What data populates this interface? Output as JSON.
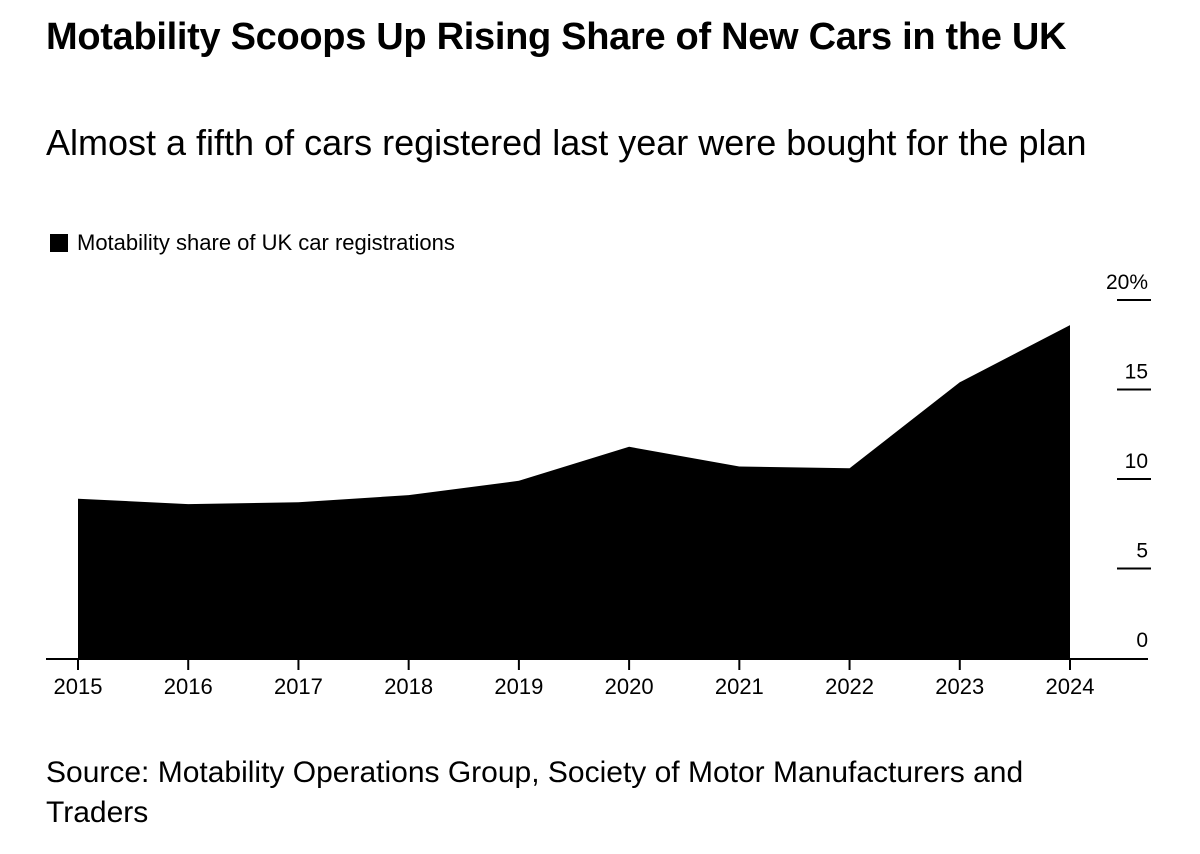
{
  "title": "Motability Scoops Up Rising Share of New Cars in the UK",
  "subtitle": "Almost a fifth of cars registered last year were bought for the plan",
  "legend": {
    "label": "Motability share of UK car registrations"
  },
  "source": "Source: Motability Operations Group, Society of Motor Manufacturers and Traders",
  "chart_data": {
    "type": "area",
    "title": "Motability Scoops Up Rising Share of New Cars in the UK",
    "subtitle": "Almost a fifth of cars registered last year were bought for the plan",
    "xlabel": "",
    "ylabel": "",
    "categories": [
      "2015",
      "2016",
      "2017",
      "2018",
      "2019",
      "2020",
      "2021",
      "2022",
      "2023",
      "2024"
    ],
    "series": [
      {
        "name": "Motability share of UK car registrations",
        "values": [
          8.9,
          8.6,
          8.7,
          9.1,
          9.9,
          11.8,
          10.7,
          10.6,
          15.4,
          18.6
        ],
        "color": "#000000"
      }
    ],
    "ylim": [
      0,
      20
    ],
    "yticks": [
      0,
      5,
      10,
      15,
      20
    ],
    "ytick_labels": [
      "0",
      "5",
      "10",
      "15",
      "20%"
    ],
    "y_axis_side": "right",
    "grid": false,
    "legend_position": "top-left"
  }
}
